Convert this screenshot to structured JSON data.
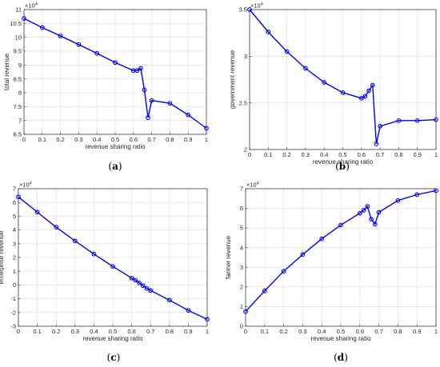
{
  "chart_data": [
    {
      "type": "line",
      "panel_label": "a",
      "xlabel": "revenue sharing ratio",
      "ylabel": "total revenue",
      "multiplier": "×10",
      "multiplier_exp": "4",
      "xlim": [
        0,
        1
      ],
      "ylim": [
        6.5,
        11
      ],
      "xticks": [
        "0",
        "0.1",
        "0.2",
        "0.3",
        "0.4",
        "0.5",
        "0.6",
        "0.7",
        "0.8",
        "0.9",
        "1"
      ],
      "yticks": [
        "6.5",
        "7",
        "7.5",
        "8",
        "8.5",
        "9",
        "9.5",
        "10",
        "10.5",
        "11"
      ],
      "grid": true,
      "color": "#0000ff",
      "x": [
        0,
        0.1,
        0.2,
        0.3,
        0.4,
        0.5,
        0.6,
        0.62,
        0.64,
        0.66,
        0.68,
        0.7,
        0.8,
        0.9,
        1.0
      ],
      "y": [
        10.68,
        10.35,
        10.05,
        9.74,
        9.42,
        9.09,
        8.8,
        8.8,
        8.88,
        8.1,
        7.1,
        7.72,
        7.62,
        7.2,
        6.72
      ]
    },
    {
      "type": "line",
      "panel_label": "b",
      "xlabel": "revenue sharing ratio",
      "ylabel": "government revenue",
      "multiplier": "×10",
      "multiplier_exp": "4",
      "xlim": [
        0,
        1
      ],
      "ylim": [
        2,
        3.5
      ],
      "xticks": [
        "0",
        "0.1",
        "0.2",
        "0.3",
        "0.4",
        "0.5",
        "0.6",
        "0.7",
        "0.8",
        "0.9",
        "1"
      ],
      "yticks": [
        "2",
        "2.5",
        "3",
        "3.5"
      ],
      "grid": true,
      "color": "#0000ff",
      "x": [
        0,
        0.1,
        0.2,
        0.3,
        0.4,
        0.5,
        0.6,
        0.62,
        0.64,
        0.66,
        0.68,
        0.7,
        0.8,
        0.9,
        1.0
      ],
      "y": [
        3.5,
        3.26,
        3.05,
        2.87,
        2.72,
        2.61,
        2.55,
        2.57,
        2.63,
        2.69,
        2.06,
        2.25,
        2.31,
        2.31,
        2.32
      ]
    },
    {
      "type": "line",
      "panel_label": "c",
      "xlabel": "revenue sharing ratio",
      "ylabel": "enterprise revenue",
      "multiplier": "×10",
      "multiplier_exp": "4",
      "xlim": [
        0,
        1
      ],
      "ylim": [
        -3,
        7
      ],
      "xticks": [
        "0",
        "0.1",
        "0.2",
        "0.3",
        "0.4",
        "0.5",
        "0.6",
        "0.7",
        "0.8",
        "0.9",
        "1"
      ],
      "yticks": [
        "-3",
        "-2",
        "-1",
        "0",
        "1",
        "2",
        "3",
        "4",
        "5",
        "6",
        "7"
      ],
      "grid": true,
      "color": "#0000ff",
      "x": [
        0,
        0.1,
        0.2,
        0.3,
        0.4,
        0.5,
        0.6,
        0.62,
        0.64,
        0.66,
        0.68,
        0.7,
        0.8,
        0.9,
        1.0
      ],
      "y": [
        6.4,
        5.3,
        4.2,
        3.2,
        2.25,
        1.35,
        0.5,
        0.35,
        0.15,
        -0.05,
        -0.25,
        -0.4,
        -1.1,
        -1.85,
        -2.5
      ]
    },
    {
      "type": "line",
      "panel_label": "d",
      "xlabel": "revenue sharing ratio",
      "ylabel": "farmer revenue",
      "multiplier": "×10",
      "multiplier_exp": "4",
      "xlim": [
        0,
        1
      ],
      "ylim": [
        0,
        7
      ],
      "xticks": [
        "0",
        "0.1",
        "0.2",
        "0.3",
        "0.4",
        "0.5",
        "0.6",
        "0.7",
        "0.8",
        "0.9",
        "1"
      ],
      "yticks": [
        "0",
        "1",
        "2",
        "3",
        "4",
        "5",
        "6",
        "7"
      ],
      "grid": true,
      "color": "#0000ff",
      "x": [
        0,
        0.1,
        0.2,
        0.3,
        0.4,
        0.5,
        0.6,
        0.62,
        0.64,
        0.66,
        0.68,
        0.7,
        0.8,
        0.9,
        1.0
      ],
      "y": [
        0.75,
        1.8,
        2.8,
        3.65,
        4.45,
        5.15,
        5.75,
        5.9,
        6.1,
        5.45,
        5.2,
        5.8,
        6.4,
        6.7,
        6.9
      ]
    }
  ]
}
